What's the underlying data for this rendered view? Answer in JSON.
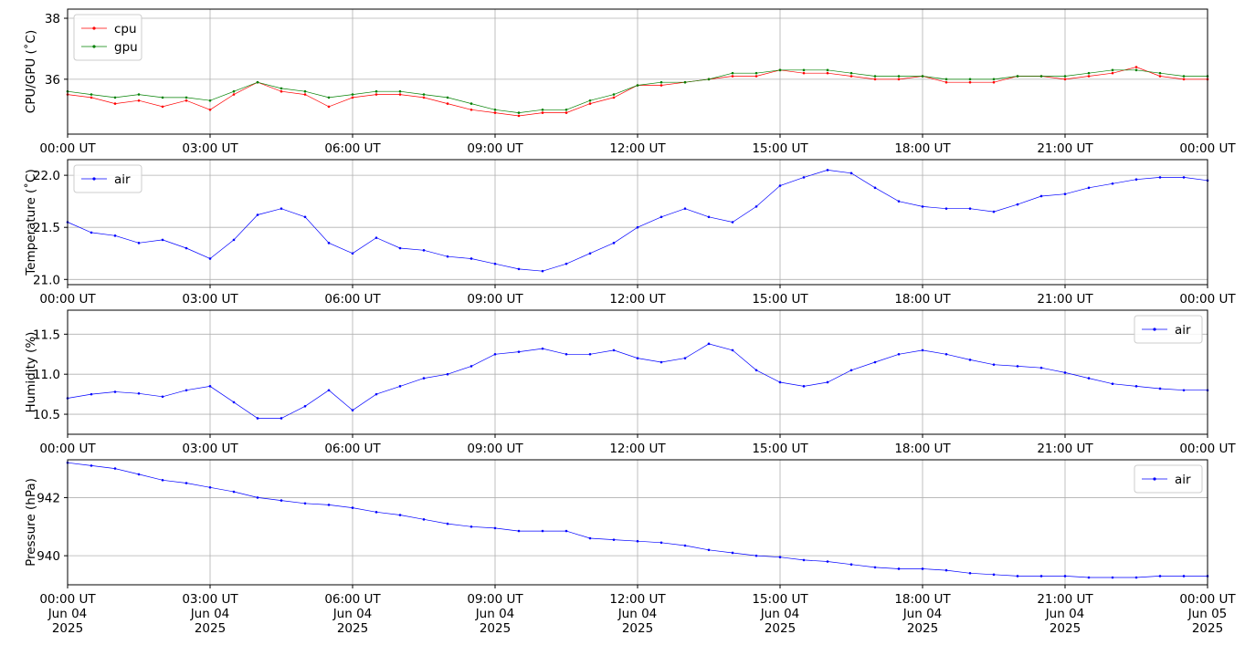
{
  "chart_data": [
    {
      "type": "line",
      "ylabel": "CPU/GPU (˚C)",
      "ylim": [
        34.2,
        38.3
      ],
      "yticks": [
        36,
        38
      ],
      "ytick_labels": [
        "36",
        "38"
      ],
      "legend": "upper left",
      "grid": true,
      "x_tick_labels": [
        "00:00 UT",
        "03:00 UT",
        "06:00 UT",
        "09:00 UT",
        "12:00 UT",
        "15:00 UT",
        "18:00 UT",
        "21:00 UT",
        "00:00 UT"
      ],
      "series": [
        {
          "name": "cpu",
          "color": "#ff0000",
          "x": [
            0,
            0.5,
            1,
            1.5,
            2,
            2.5,
            3,
            3.5,
            4,
            4.5,
            5,
            5.5,
            6,
            6.5,
            7,
            7.5,
            8,
            8.5,
            9,
            9.5,
            10,
            10.5,
            11,
            11.5,
            12,
            12.5,
            13,
            13.5,
            14,
            14.5,
            15,
            15.5,
            16,
            16.5,
            17,
            17.5,
            18,
            18.5,
            19,
            19.5,
            20,
            20.5,
            21,
            21.5,
            22,
            22.5,
            23,
            23.5,
            24
          ],
          "y": [
            35.5,
            35.4,
            35.2,
            35.3,
            35.1,
            35.3,
            35.0,
            35.5,
            35.9,
            35.6,
            35.5,
            35.1,
            35.4,
            35.5,
            35.5,
            35.4,
            35.2,
            35.0,
            34.9,
            34.8,
            34.9,
            34.9,
            35.2,
            35.4,
            35.8,
            35.8,
            35.9,
            36.0,
            36.1,
            36.1,
            36.3,
            36.2,
            36.2,
            36.1,
            36.0,
            36.0,
            36.1,
            35.9,
            35.9,
            35.9,
            36.1,
            36.1,
            36.0,
            36.1,
            36.2,
            36.4,
            36.1,
            36.0,
            36.0
          ]
        },
        {
          "name": "gpu",
          "color": "#008000",
          "x": [
            0,
            0.5,
            1,
            1.5,
            2,
            2.5,
            3,
            3.5,
            4,
            4.5,
            5,
            5.5,
            6,
            6.5,
            7,
            7.5,
            8,
            8.5,
            9,
            9.5,
            10,
            10.5,
            11,
            11.5,
            12,
            12.5,
            13,
            13.5,
            14,
            14.5,
            15,
            15.5,
            16,
            16.5,
            17,
            17.5,
            18,
            18.5,
            19,
            19.5,
            20,
            20.5,
            21,
            21.5,
            22,
            22.5,
            23,
            23.5,
            24
          ],
          "y": [
            35.6,
            35.5,
            35.4,
            35.5,
            35.4,
            35.4,
            35.3,
            35.6,
            35.9,
            35.7,
            35.6,
            35.4,
            35.5,
            35.6,
            35.6,
            35.5,
            35.4,
            35.2,
            35.0,
            34.9,
            35.0,
            35.0,
            35.3,
            35.5,
            35.8,
            35.9,
            35.9,
            36.0,
            36.2,
            36.2,
            36.3,
            36.3,
            36.3,
            36.2,
            36.1,
            36.1,
            36.1,
            36.0,
            36.0,
            36.0,
            36.1,
            36.1,
            36.1,
            36.2,
            36.3,
            36.3,
            36.2,
            36.1,
            36.1
          ]
        }
      ]
    },
    {
      "type": "line",
      "ylabel": "Temperature (˚C)",
      "ylim": [
        20.95,
        22.15
      ],
      "yticks": [
        21.0,
        21.5,
        22.0
      ],
      "ytick_labels": [
        "21.0",
        "21.5",
        "22.0"
      ],
      "legend": "upper left",
      "grid": true,
      "x_tick_labels": [
        "00:00 UT",
        "03:00 UT",
        "06:00 UT",
        "09:00 UT",
        "12:00 UT",
        "15:00 UT",
        "18:00 UT",
        "21:00 UT",
        "00:00 UT"
      ],
      "series": [
        {
          "name": "air",
          "color": "#0000ff",
          "x": [
            0,
            0.5,
            1,
            1.5,
            2,
            2.5,
            3,
            3.5,
            4,
            4.5,
            5,
            5.5,
            6,
            6.5,
            7,
            7.5,
            8,
            8.5,
            9,
            9.5,
            10,
            10.5,
            11,
            11.5,
            12,
            12.5,
            13,
            13.5,
            14,
            14.5,
            15,
            15.5,
            16,
            16.5,
            17,
            17.5,
            18,
            18.5,
            19,
            19.5,
            20,
            20.5,
            21,
            21.5,
            22,
            22.5,
            23,
            23.5,
            24
          ],
          "y": [
            21.55,
            21.45,
            21.42,
            21.35,
            21.38,
            21.3,
            21.2,
            21.38,
            21.62,
            21.68,
            21.6,
            21.35,
            21.25,
            21.4,
            21.3,
            21.28,
            21.22,
            21.2,
            21.15,
            21.1,
            21.08,
            21.15,
            21.25,
            21.35,
            21.5,
            21.6,
            21.68,
            21.6,
            21.55,
            21.7,
            21.9,
            21.98,
            22.05,
            22.02,
            21.88,
            21.75,
            21.7,
            21.68,
            21.68,
            21.65,
            21.72,
            21.8,
            21.82,
            21.88,
            21.92,
            21.96,
            21.98,
            21.98,
            21.95
          ]
        }
      ]
    },
    {
      "type": "line",
      "ylabel": "Humidity (%)",
      "ylim": [
        10.25,
        11.8
      ],
      "yticks": [
        10.5,
        11.0,
        11.5
      ],
      "ytick_labels": [
        "10.5",
        "11.0",
        "11.5"
      ],
      "legend": "upper right",
      "grid": true,
      "x_tick_labels": [
        "00:00 UT",
        "03:00 UT",
        "06:00 UT",
        "09:00 UT",
        "12:00 UT",
        "15:00 UT",
        "18:00 UT",
        "21:00 UT",
        "00:00 UT"
      ],
      "series": [
        {
          "name": "air",
          "color": "#0000ff",
          "x": [
            0,
            0.5,
            1,
            1.5,
            2,
            2.5,
            3,
            3.5,
            4,
            4.5,
            5,
            5.5,
            6,
            6.5,
            7,
            7.5,
            8,
            8.5,
            9,
            9.5,
            10,
            10.5,
            11,
            11.5,
            12,
            12.5,
            13,
            13.5,
            14,
            14.5,
            15,
            15.5,
            16,
            16.5,
            17,
            17.5,
            18,
            18.5,
            19,
            19.5,
            20,
            20.5,
            21,
            21.5,
            22,
            22.5,
            23,
            23.5,
            24
          ],
          "y": [
            10.7,
            10.75,
            10.78,
            10.76,
            10.72,
            10.8,
            10.85,
            10.65,
            10.45,
            10.45,
            10.6,
            10.8,
            10.55,
            10.75,
            10.85,
            10.95,
            11.0,
            11.1,
            11.25,
            11.28,
            11.32,
            11.25,
            11.25,
            11.3,
            11.2,
            11.15,
            11.2,
            11.38,
            11.3,
            11.05,
            10.9,
            10.85,
            10.9,
            11.05,
            11.15,
            11.25,
            11.3,
            11.25,
            11.18,
            11.12,
            11.1,
            11.08,
            11.02,
            10.95,
            10.88,
            10.85,
            10.82,
            10.8,
            10.8
          ]
        }
      ]
    },
    {
      "type": "line",
      "ylabel": "Pressure (hPa)",
      "ylim": [
        939.0,
        943.3
      ],
      "yticks": [
        940,
        942
      ],
      "ytick_labels": [
        "940",
        "942"
      ],
      "legend": "upper right",
      "grid": true,
      "x_tick_labels": [
        [
          "00:00 UT",
          "Jun 04",
          "2025"
        ],
        [
          "03:00 UT",
          "Jun 04",
          "2025"
        ],
        [
          "06:00 UT",
          "Jun 04",
          "2025"
        ],
        [
          "09:00 UT",
          "Jun 04",
          "2025"
        ],
        [
          "12:00 UT",
          "Jun 04",
          "2025"
        ],
        [
          "15:00 UT",
          "Jun 04",
          "2025"
        ],
        [
          "18:00 UT",
          "Jun 04",
          "2025"
        ],
        [
          "21:00 UT",
          "Jun 04",
          "2025"
        ],
        [
          "00:00 UT",
          "Jun 05",
          "2025"
        ]
      ],
      "series": [
        {
          "name": "air",
          "color": "#0000ff",
          "x": [
            0,
            0.5,
            1,
            1.5,
            2,
            2.5,
            3,
            3.5,
            4,
            4.5,
            5,
            5.5,
            6,
            6.5,
            7,
            7.5,
            8,
            8.5,
            9,
            9.5,
            10,
            10.5,
            11,
            11.5,
            12,
            12.5,
            13,
            13.5,
            14,
            14.5,
            15,
            15.5,
            16,
            16.5,
            17,
            17.5,
            18,
            18.5,
            19,
            19.5,
            20,
            20.5,
            21,
            21.5,
            22,
            22.5,
            23,
            23.5,
            24
          ],
          "y": [
            943.2,
            943.1,
            943.0,
            942.8,
            942.6,
            942.5,
            942.35,
            942.2,
            942.0,
            941.9,
            941.8,
            941.75,
            941.65,
            941.5,
            941.4,
            941.25,
            941.1,
            941.0,
            940.95,
            940.85,
            940.85,
            940.85,
            940.6,
            940.55,
            940.5,
            940.45,
            940.35,
            940.2,
            940.1,
            940.0,
            939.95,
            939.85,
            939.8,
            939.7,
            939.6,
            939.55,
            939.55,
            939.5,
            939.4,
            939.35,
            939.3,
            939.3,
            939.3,
            939.25,
            939.25,
            939.25,
            939.3,
            939.3,
            939.3
          ]
        }
      ]
    }
  ]
}
